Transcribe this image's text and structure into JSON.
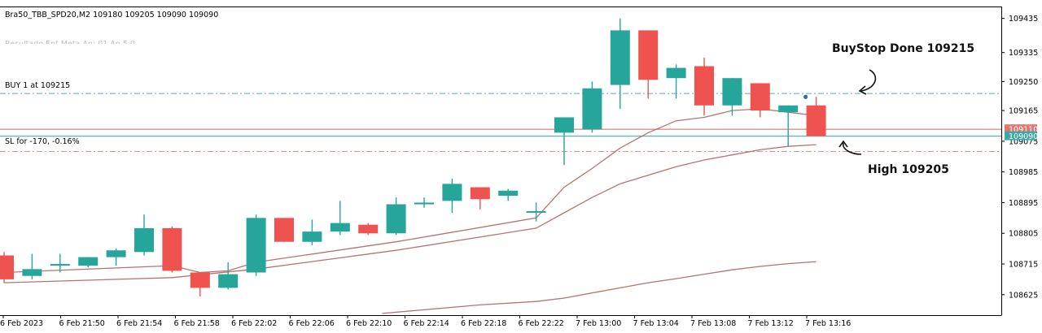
{
  "header": {
    "symbol_info": "Bra50_TBB_SPD20,M2  109180 109205 109090 109090",
    "faded_line": "Resultado Ent,Meta Ap: 01,Ap 5 0"
  },
  "colors": {
    "bull": "#26a69a",
    "bear": "#ef5350",
    "ma": "#b5736e",
    "buy_line": "#5aa7c9",
    "sl_line": "#d9918d",
    "bid_line": "#5fb8b6",
    "ask_line": "#d9918d",
    "grid": "#000000"
  },
  "chart_data": {
    "type": "candlestick",
    "ylim": [
      108565,
      109470
    ],
    "y_ticks": [
      109435,
      109335,
      109250,
      109165,
      109075,
      108985,
      108895,
      108805,
      108715,
      108625
    ],
    "y_tick_labels": [
      "109435",
      "109335",
      "109250",
      "109165",
      "109075",
      "108985",
      "108895",
      "108805",
      "108715",
      "108625"
    ],
    "x_tick_labels": [
      "6 Feb 2023",
      "6 Feb 21:50",
      "6 Feb 21:54",
      "6 Feb 21:58",
      "6 Feb 22:02",
      "6 Feb 22:06",
      "6 Feb 22:10",
      "6 Feb 22:14",
      "6 Feb 22:18",
      "6 Feb 22:22",
      "7 Feb 13:00",
      "7 Feb 13:04",
      "7 Feb 13:08",
      "7 Feb 13:12",
      "7 Feb 13:16"
    ],
    "candles": [
      {
        "o": 108740,
        "h": 108750,
        "l": 108660,
        "c": 108670
      },
      {
        "o": 108680,
        "h": 108745,
        "l": 108670,
        "c": 108700
      },
      {
        "o": 108710,
        "h": 108745,
        "l": 108690,
        "c": 108715
      },
      {
        "o": 108710,
        "h": 108735,
        "l": 108705,
        "c": 108735
      },
      {
        "o": 108735,
        "h": 108760,
        "l": 108710,
        "c": 108755
      },
      {
        "o": 108750,
        "h": 108860,
        "l": 108740,
        "c": 108820
      },
      {
        "o": 108820,
        "h": 108825,
        "l": 108690,
        "c": 108695
      },
      {
        "o": 108690,
        "h": 108690,
        "l": 108620,
        "c": 108645
      },
      {
        "o": 108645,
        "h": 108720,
        "l": 108640,
        "c": 108685
      },
      {
        "o": 108690,
        "h": 108860,
        "l": 108680,
        "c": 108850
      },
      {
        "o": 108850,
        "h": 108850,
        "l": 108780,
        "c": 108780
      },
      {
        "o": 108780,
        "h": 108845,
        "l": 108770,
        "c": 108810
      },
      {
        "o": 108810,
        "h": 108900,
        "l": 108800,
        "c": 108835
      },
      {
        "o": 108830,
        "h": 108835,
        "l": 108800,
        "c": 108805
      },
      {
        "o": 108805,
        "h": 108910,
        "l": 108800,
        "c": 108890
      },
      {
        "o": 108890,
        "h": 108910,
        "l": 108880,
        "c": 108895
      },
      {
        "o": 108900,
        "h": 108965,
        "l": 108865,
        "c": 108950
      },
      {
        "o": 108940,
        "h": 108940,
        "l": 108875,
        "c": 108905
      },
      {
        "o": 108915,
        "h": 108935,
        "l": 108900,
        "c": 108930
      },
      {
        "o": 108870,
        "h": 108895,
        "l": 108840,
        "c": 108870
      },
      {
        "o": 109100,
        "h": 109145,
        "l": 109005,
        "c": 109145
      },
      {
        "o": 109110,
        "h": 109250,
        "l": 109100,
        "c": 109230
      },
      {
        "o": 109240,
        "h": 109435,
        "l": 109170,
        "c": 109400
      },
      {
        "o": 109400,
        "h": 109400,
        "l": 109200,
        "c": 109255
      },
      {
        "o": 109260,
        "h": 109300,
        "l": 109200,
        "c": 109290
      },
      {
        "o": 109295,
        "h": 109320,
        "l": 109150,
        "c": 109180
      },
      {
        "o": 109180,
        "h": 109260,
        "l": 109150,
        "c": 109260
      },
      {
        "o": 109245,
        "h": 109245,
        "l": 109145,
        "c": 109165
      },
      {
        "o": 109160,
        "h": 109180,
        "l": 109060,
        "c": 109180
      },
      {
        "o": 109180,
        "h": 109205,
        "l": 109090,
        "c": 109090
      }
    ],
    "ma_fast": [
      [
        0,
        108690
      ],
      [
        6,
        108710
      ],
      [
        7,
        108690
      ],
      [
        8,
        108695
      ],
      [
        9,
        108720
      ],
      [
        14,
        108780
      ],
      [
        19,
        108850
      ],
      [
        20,
        108940
      ],
      [
        21,
        108995
      ],
      [
        22,
        109055
      ],
      [
        23,
        109100
      ],
      [
        24,
        109135
      ],
      [
        25,
        109145
      ],
      [
        26,
        109165
      ],
      [
        27,
        109170
      ],
      [
        28,
        109160
      ],
      [
        29,
        109150
      ]
    ],
    "ma_mid": [
      [
        0,
        108660
      ],
      [
        6,
        108675
      ],
      [
        9,
        108700
      ],
      [
        14,
        108755
      ],
      [
        19,
        108820
      ],
      [
        20,
        108865
      ],
      [
        21,
        108910
      ],
      [
        22,
        108950
      ],
      [
        23,
        108975
      ],
      [
        24,
        109000
      ],
      [
        25,
        109020
      ],
      [
        26,
        109035
      ],
      [
        27,
        109050
      ],
      [
        28,
        109060
      ],
      [
        29,
        109065
      ]
    ],
    "ma_slow": [
      [
        13.5,
        108570
      ],
      [
        17,
        108595
      ],
      [
        19,
        108605
      ],
      [
        20,
        108615
      ],
      [
        21,
        108630
      ],
      [
        22,
        108645
      ],
      [
        23,
        108660
      ],
      [
        24,
        108672
      ],
      [
        25,
        108685
      ],
      [
        26,
        108698
      ],
      [
        27,
        108708
      ],
      [
        28,
        108716
      ],
      [
        29,
        108722
      ]
    ],
    "levels": {
      "buy": 109215,
      "sl": 109045,
      "ask": 109110,
      "bid": 109090,
      "high_dot": 109205
    },
    "level_labels": {
      "buy": "BUY 1 at 109215",
      "sl": "SL for -170, -0.16%",
      "ask_tag": "109110",
      "bid_tag": "109090",
      "hidden_tick": "109075"
    },
    "annotations": {
      "buystop": "BuyStop Done 109215",
      "high": "High 109205"
    }
  }
}
